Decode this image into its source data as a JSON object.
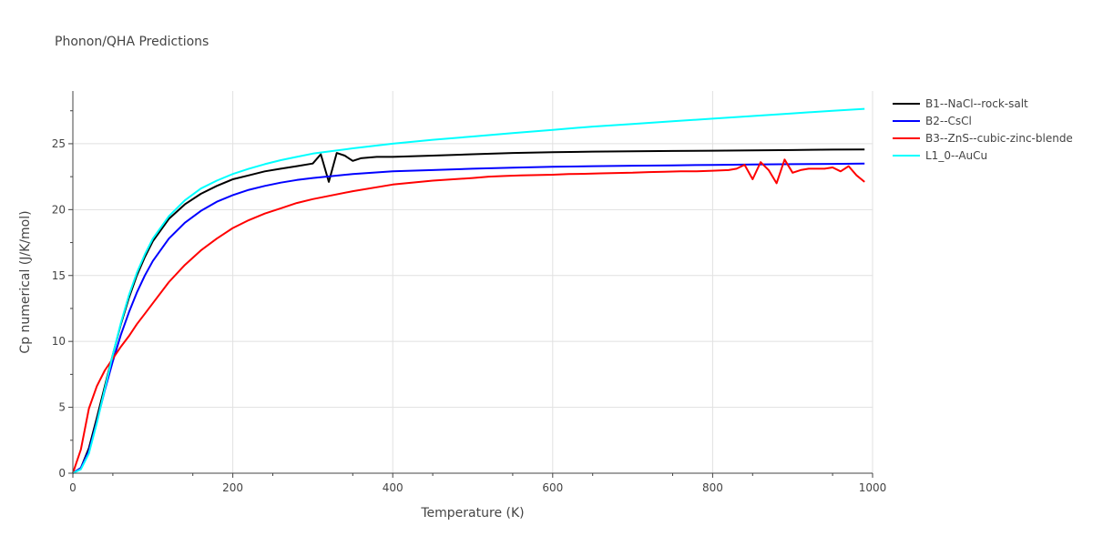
{
  "chart_data": {
    "type": "line",
    "title": "Phonon/QHA Predictions",
    "xlabel": "Temperature (K)",
    "ylabel": "Cp numerical (J/K/mol)",
    "xlim": [
      0,
      1000
    ],
    "ylim": [
      0,
      29
    ],
    "xticks": [
      0,
      200,
      400,
      600,
      800,
      1000
    ],
    "xtick_labels": [
      "0",
      "200",
      "400",
      "600",
      "800",
      "1000"
    ],
    "yticks": [
      0,
      5,
      10,
      15,
      20,
      25
    ],
    "ytick_labels": [
      "0",
      "5",
      "10",
      "15",
      "20",
      "25"
    ],
    "grid": true,
    "legend": "right",
    "series": [
      {
        "name": "B1--NaCl--rock-salt",
        "color": "#000000",
        "x": [
          0,
          10,
          20,
          30,
          40,
          50,
          60,
          70,
          80,
          90,
          100,
          120,
          140,
          160,
          180,
          200,
          220,
          240,
          260,
          280,
          300,
          310,
          320,
          330,
          340,
          350,
          360,
          380,
          400,
          450,
          500,
          550,
          600,
          650,
          700,
          750,
          800,
          850,
          900,
          950,
          990
        ],
        "values": [
          0,
          0.4,
          1.9,
          4.2,
          6.6,
          9.0,
          11.3,
          13.3,
          15.0,
          16.4,
          17.6,
          19.3,
          20.4,
          21.2,
          21.8,
          22.3,
          22.6,
          22.9,
          23.1,
          23.3,
          23.5,
          24.2,
          22.1,
          24.3,
          24.1,
          23.7,
          23.9,
          24.0,
          24.0,
          24.1,
          24.2,
          24.3,
          24.35,
          24.4,
          24.42,
          24.45,
          24.47,
          24.5,
          24.52,
          24.55,
          24.57
        ]
      },
      {
        "name": "B2--CsCl",
        "color": "#0000ff",
        "x": [
          0,
          10,
          20,
          30,
          40,
          50,
          60,
          70,
          80,
          90,
          100,
          120,
          140,
          160,
          180,
          200,
          220,
          240,
          260,
          280,
          300,
          350,
          400,
          450,
          500,
          550,
          600,
          650,
          700,
          750,
          800,
          850,
          900,
          950,
          990
        ],
        "values": [
          0,
          0.4,
          1.7,
          3.9,
          6.3,
          8.5,
          10.5,
          12.2,
          13.7,
          15.0,
          16.1,
          17.8,
          19.0,
          19.9,
          20.6,
          21.1,
          21.5,
          21.8,
          22.05,
          22.25,
          22.4,
          22.7,
          22.9,
          23.0,
          23.1,
          23.18,
          23.25,
          23.3,
          23.33,
          23.36,
          23.39,
          23.42,
          23.45,
          23.47,
          23.5
        ]
      },
      {
        "name": "B3--ZnS--cubic-zinc-blende",
        "color": "#ff0000",
        "x": [
          0,
          10,
          20,
          30,
          40,
          50,
          60,
          70,
          80,
          90,
          100,
          120,
          140,
          160,
          180,
          200,
          220,
          240,
          260,
          280,
          300,
          350,
          400,
          450,
          500,
          520,
          540,
          560,
          580,
          600,
          620,
          640,
          660,
          680,
          700,
          720,
          740,
          760,
          780,
          800,
          820,
          830,
          840,
          850,
          860,
          870,
          880,
          890,
          900,
          910,
          920,
          940,
          950,
          960,
          970,
          980,
          990
        ],
        "values": [
          0,
          1.8,
          4.9,
          6.6,
          7.8,
          8.7,
          9.6,
          10.4,
          11.3,
          12.1,
          12.9,
          14.5,
          15.8,
          16.9,
          17.8,
          18.6,
          19.2,
          19.7,
          20.1,
          20.5,
          20.8,
          21.4,
          21.9,
          22.2,
          22.4,
          22.5,
          22.55,
          22.6,
          22.62,
          22.65,
          22.7,
          22.72,
          22.75,
          22.78,
          22.8,
          22.85,
          22.87,
          22.9,
          22.9,
          22.95,
          23.0,
          23.1,
          23.4,
          22.3,
          23.6,
          23.0,
          22.0,
          23.8,
          22.8,
          23.0,
          23.1,
          23.1,
          23.2,
          22.9,
          23.3,
          22.6,
          22.1
        ]
      },
      {
        "name": "L1_0--AuCu",
        "color": "#00ffff",
        "x": [
          0,
          10,
          20,
          30,
          40,
          50,
          60,
          70,
          80,
          90,
          100,
          120,
          140,
          160,
          180,
          200,
          220,
          240,
          260,
          280,
          300,
          350,
          400,
          450,
          500,
          550,
          600,
          650,
          700,
          750,
          800,
          850,
          900,
          950,
          990
        ],
        "values": [
          0,
          0.3,
          1.5,
          3.8,
          6.4,
          9.0,
          11.4,
          13.5,
          15.2,
          16.6,
          17.8,
          19.5,
          20.7,
          21.6,
          22.2,
          22.7,
          23.1,
          23.45,
          23.75,
          24.0,
          24.25,
          24.65,
          25.0,
          25.3,
          25.55,
          25.8,
          26.05,
          26.3,
          26.5,
          26.7,
          26.9,
          27.1,
          27.3,
          27.5,
          27.65
        ]
      }
    ]
  }
}
